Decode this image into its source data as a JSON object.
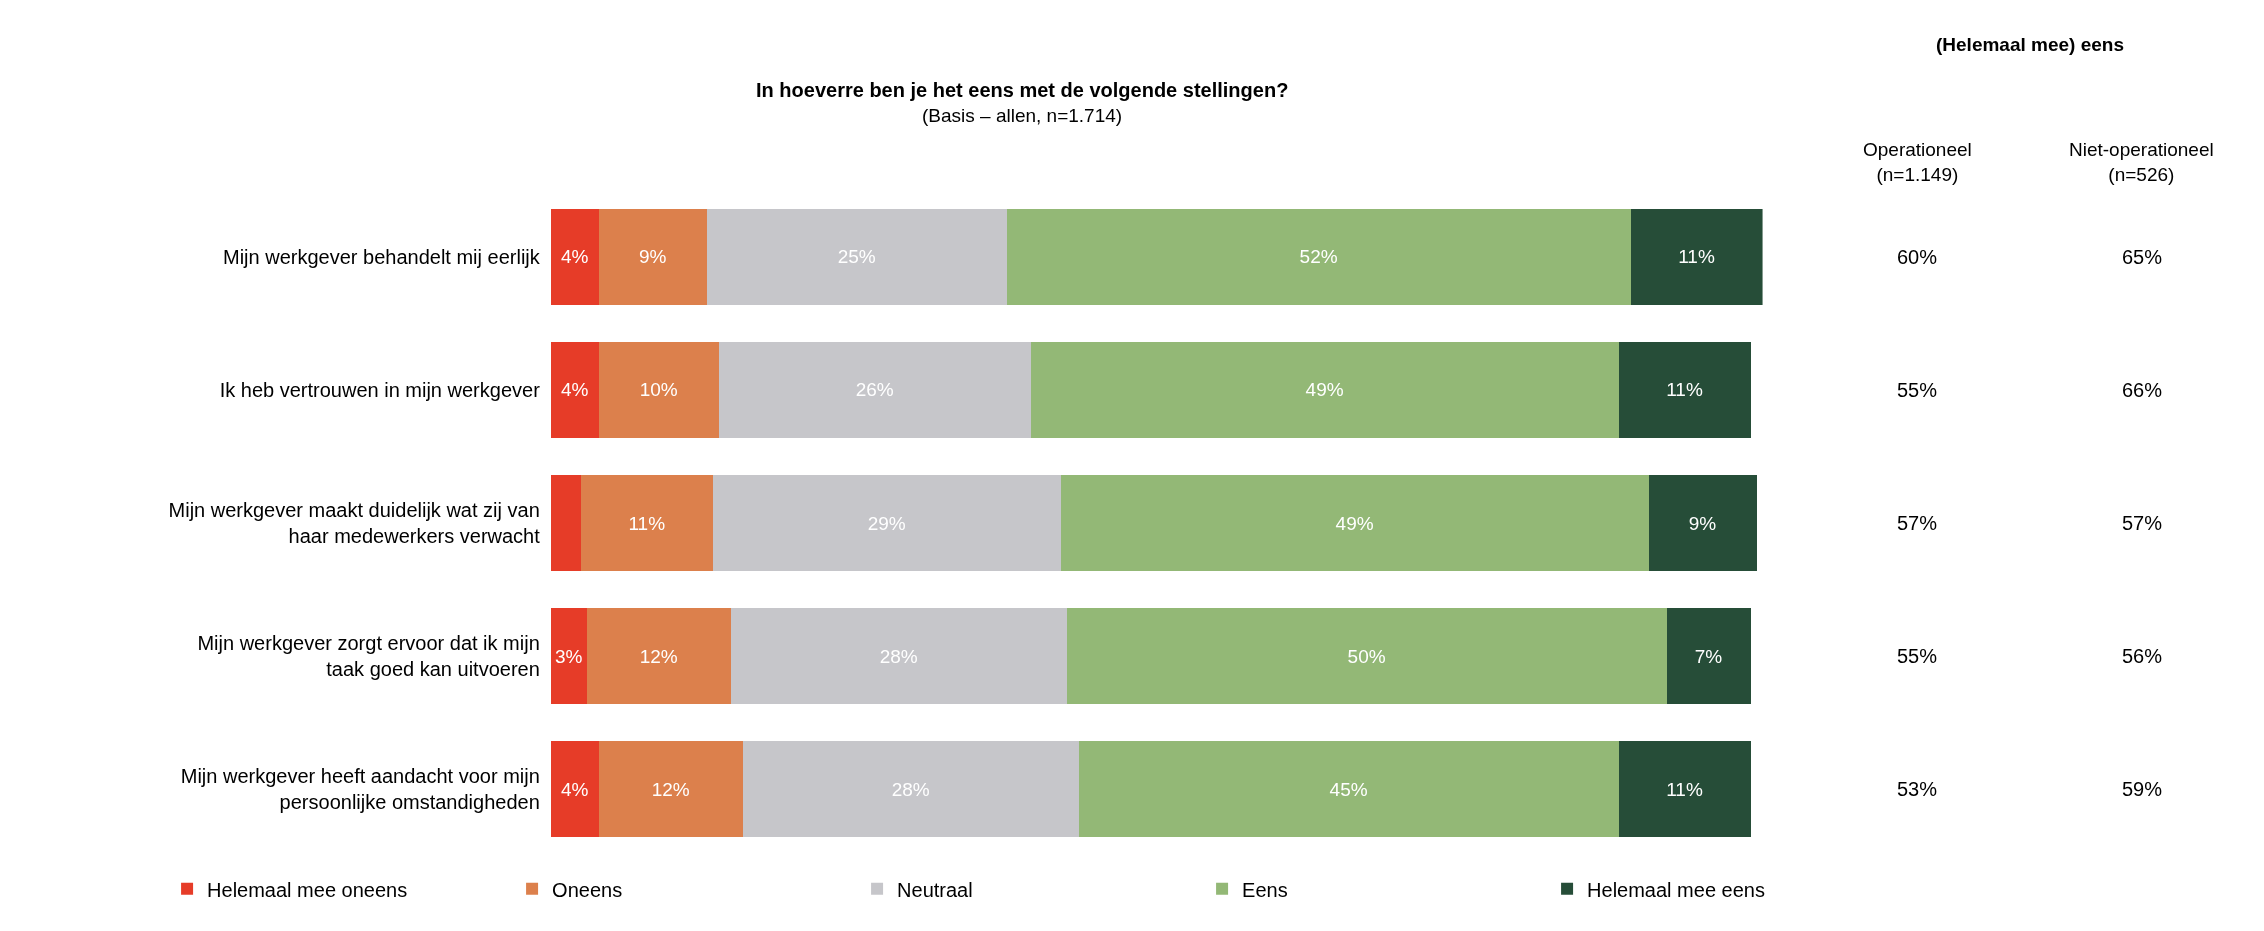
{
  "chart_data": [
    {
      "type": "bar",
      "orientation": "horizontal",
      "stacked": true,
      "title": "In hoeverre ben je het eens met de volgende stellingen?",
      "subtitle": "(Basis – allen, n=1.714)",
      "legend": "bottom",
      "categories": [
        "Mijn werkgever behandelt mij eerlijk",
        "Ik heb vertrouwen in mijn werkgever",
        "Mijn werkgever maakt duidelijk wat zij van\nhaar medewerkers verwacht",
        "Mijn werkgever zorgt ervoor dat ik mijn\ntaak goed kan uitvoeren",
        "Mijn werkgever heeft aandacht voor mijn\npersoonlijke omstandigheden"
      ],
      "series": [
        {
          "name": "Helemaal mee oneens",
          "color": "#e63c28",
          "values": [
            4,
            4,
            2.5,
            3,
            4
          ],
          "value_labels": [
            "4%",
            "4%",
            null,
            "3%",
            "4%"
          ]
        },
        {
          "name": "Oneens",
          "color": "#dc804c",
          "values": [
            9,
            10,
            11,
            12,
            12
          ],
          "value_labels": [
            "9%",
            "10%",
            "11%",
            "12%",
            "12%"
          ]
        },
        {
          "name": "Neutraal",
          "color": "#c6c6ca",
          "values": [
            25,
            26,
            29,
            28,
            28
          ],
          "value_labels": [
            "25%",
            "26%",
            "29%",
            "28%",
            "28%"
          ]
        },
        {
          "name": "Eens",
          "color": "#93b876",
          "values": [
            52,
            49,
            49,
            50,
            45
          ],
          "value_labels": [
            "52%",
            "49%",
            "49%",
            "50%",
            "45%"
          ]
        },
        {
          "name": "Helemaal mee eens",
          "color": "#264d38",
          "values": [
            11,
            11,
            9,
            7,
            11
          ],
          "value_labels": [
            "11%",
            "11%",
            "9%",
            "7%",
            "11%"
          ]
        }
      ]
    },
    {
      "type": "other",
      "title": "(Helemaal mee) eens",
      "annotations": [
        "Operationeel\n(n=1.149)",
        "Niet-operationeel\n(n=526)",
        "60%",
        "65%",
        "55%",
        "66%",
        "57%",
        "57%",
        "55%",
        "56%",
        "53%",
        "59%"
      ]
    }
  ]
}
